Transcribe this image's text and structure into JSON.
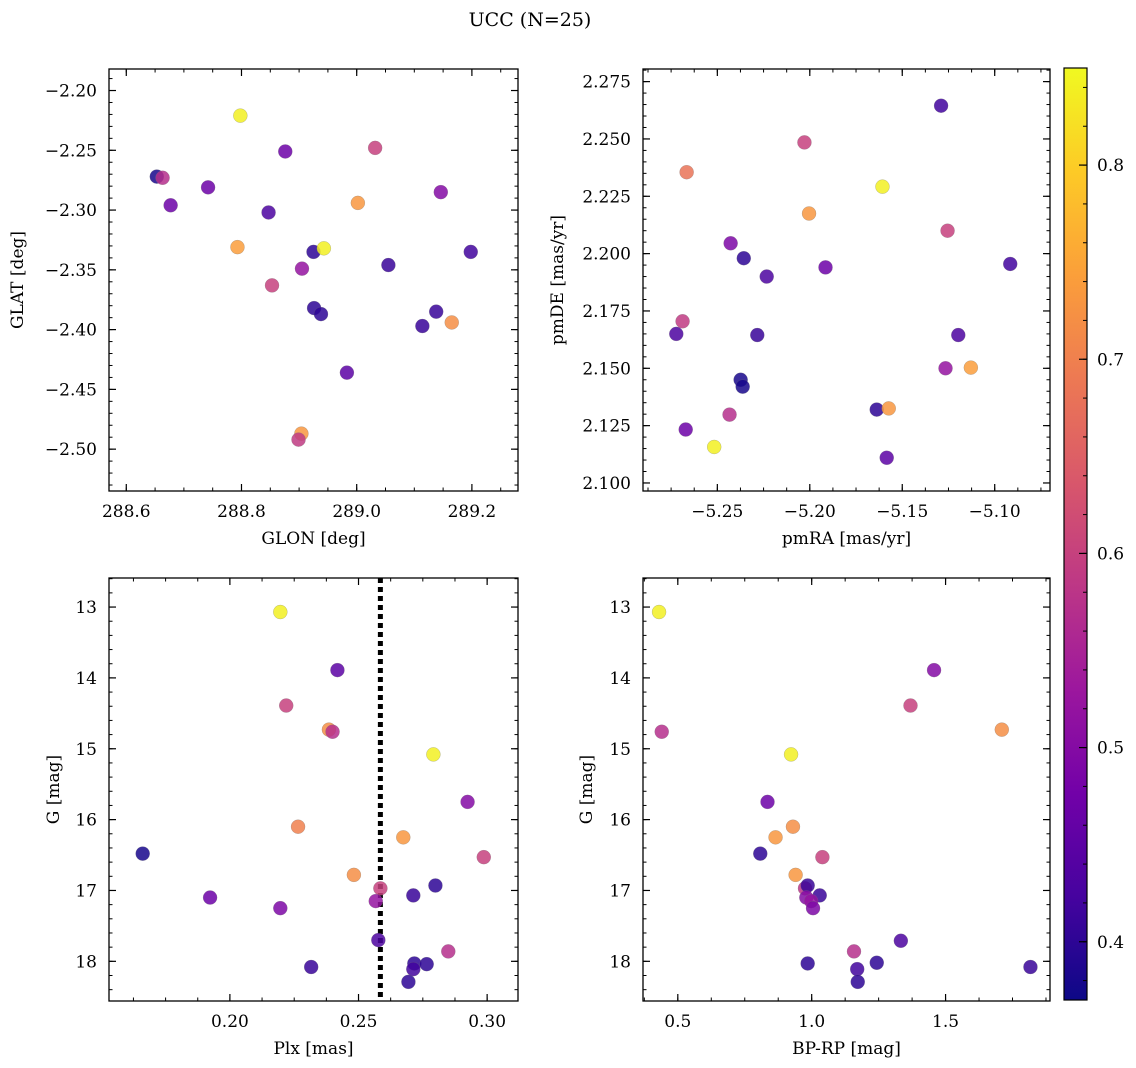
{
  "figure": {
    "title": "UCC (N=25)"
  },
  "chart_data": [
    {
      "type": "scatter",
      "xlabel": "GLON [deg]",
      "ylabel": "GLAT [deg]",
      "xlim": [
        288.57,
        289.28
      ],
      "ylim": [
        -2.535,
        -2.182
      ],
      "xticks": [
        288.6,
        288.8,
        289.0,
        289.2
      ],
      "xtick_labels": [
        "288.6",
        "288.8",
        "289.0",
        "289.2"
      ],
      "yticks": [
        -2.5,
        -2.45,
        -2.4,
        -2.35,
        -2.3,
        -2.25,
        -2.2
      ],
      "ytick_labels": [
        "−2.50",
        "−2.45",
        "−2.40",
        "−2.35",
        "−2.30",
        "−2.25",
        "−2.20"
      ],
      "y_inverted": false,
      "points": [
        {
          "x": 288.798,
          "y": -2.221,
          "c": 0.84
        },
        {
          "x": 288.653,
          "y": -2.272,
          "c": 0.38
        },
        {
          "x": 288.663,
          "y": -2.273,
          "c": 0.57
        },
        {
          "x": 288.677,
          "y": -2.296,
          "c": 0.47
        },
        {
          "x": 288.742,
          "y": -2.281,
          "c": 0.47
        },
        {
          "x": 288.876,
          "y": -2.251,
          "c": 0.47
        },
        {
          "x": 289.032,
          "y": -2.248,
          "c": 0.6
        },
        {
          "x": 288.847,
          "y": -2.302,
          "c": 0.43
        },
        {
          "x": 289.002,
          "y": -2.294,
          "c": 0.73
        },
        {
          "x": 289.146,
          "y": -2.285,
          "c": 0.5
        },
        {
          "x": 288.793,
          "y": -2.331,
          "c": 0.74
        },
        {
          "x": 288.925,
          "y": -2.335,
          "c": 0.4
        },
        {
          "x": 288.943,
          "y": -2.332,
          "c": 0.84
        },
        {
          "x": 289.055,
          "y": -2.346,
          "c": 0.41
        },
        {
          "x": 289.198,
          "y": -2.335,
          "c": 0.42
        },
        {
          "x": 288.905,
          "y": -2.349,
          "c": 0.52
        },
        {
          "x": 288.853,
          "y": -2.363,
          "c": 0.6
        },
        {
          "x": 288.926,
          "y": -2.382,
          "c": 0.4
        },
        {
          "x": 288.938,
          "y": -2.387,
          "c": 0.4
        },
        {
          "x": 289.138,
          "y": -2.385,
          "c": 0.41
        },
        {
          "x": 289.114,
          "y": -2.397,
          "c": 0.41
        },
        {
          "x": 289.165,
          "y": -2.394,
          "c": 0.72
        },
        {
          "x": 288.983,
          "y": -2.436,
          "c": 0.45
        },
        {
          "x": 288.904,
          "y": -2.487,
          "c": 0.73
        },
        {
          "x": 288.899,
          "y": -2.492,
          "c": 0.59
        }
      ]
    },
    {
      "type": "scatter",
      "xlabel": "pmRA [mas/yr]",
      "ylabel": "pmDE [mas/yr]",
      "xlim": [
        -5.2902,
        -5.0701
      ],
      "ylim": [
        2.0965,
        2.2805
      ],
      "xticks": [
        -5.25,
        -5.2,
        -5.15,
        -5.1
      ],
      "xtick_labels": [
        "−5.25",
        "−5.20",
        "−5.15",
        "−5.10"
      ],
      "yticks": [
        2.1,
        2.125,
        2.15,
        2.175,
        2.2,
        2.225,
        2.25,
        2.275
      ],
      "ytick_labels": [
        "2.100",
        "2.125",
        "2.150",
        "2.175",
        "2.200",
        "2.225",
        "2.250",
        "2.275"
      ],
      "y_inverted": false,
      "points": [
        {
          "x": -5.129,
          "y": 2.2645,
          "c": 0.42
        },
        {
          "x": -5.2029,
          "y": 2.2485,
          "c": 0.6
        },
        {
          "x": -5.2666,
          "y": 2.2355,
          "c": 0.68
        },
        {
          "x": -5.1607,
          "y": 2.2292,
          "c": 0.84
        },
        {
          "x": -5.2004,
          "y": 2.2175,
          "c": 0.73
        },
        {
          "x": -5.1255,
          "y": 2.21,
          "c": 0.6
        },
        {
          "x": -5.2428,
          "y": 2.2045,
          "c": 0.49
        },
        {
          "x": -5.2357,
          "y": 2.198,
          "c": 0.4
        },
        {
          "x": -5.0916,
          "y": 2.1955,
          "c": 0.42
        },
        {
          "x": -5.1915,
          "y": 2.194,
          "c": 0.47
        },
        {
          "x": -5.2233,
          "y": 2.19,
          "c": 0.43
        },
        {
          "x": -5.2688,
          "y": 2.1705,
          "c": 0.59
        },
        {
          "x": -5.2722,
          "y": 2.165,
          "c": 0.43
        },
        {
          "x": -5.2284,
          "y": 2.1645,
          "c": 0.41
        },
        {
          "x": -5.1197,
          "y": 2.1645,
          "c": 0.43
        },
        {
          "x": -5.1266,
          "y": 2.15,
          "c": 0.52
        },
        {
          "x": -5.1129,
          "y": 2.1503,
          "c": 0.74
        },
        {
          "x": -5.2374,
          "y": 2.145,
          "c": 0.38
        },
        {
          "x": -5.2363,
          "y": 2.142,
          "c": 0.38
        },
        {
          "x": -5.1638,
          "y": 2.132,
          "c": 0.4
        },
        {
          "x": -5.1573,
          "y": 2.1325,
          "c": 0.73
        },
        {
          "x": -5.2434,
          "y": 2.1298,
          "c": 0.57
        },
        {
          "x": -5.2671,
          "y": 2.1233,
          "c": 0.47
        },
        {
          "x": -5.2517,
          "y": 2.1157,
          "c": 0.84
        },
        {
          "x": -5.1584,
          "y": 2.111,
          "c": 0.45
        }
      ]
    },
    {
      "type": "scatter",
      "xlabel": "Plx [mas]",
      "ylabel": "G [mag]",
      "xlim": [
        0.153,
        0.312
      ],
      "ylim": [
        18.56,
        12.59
      ],
      "xticks": [
        0.2,
        0.25,
        0.3
      ],
      "xtick_labels": [
        "0.20",
        "0.25",
        "0.30"
      ],
      "yticks": [
        13,
        14,
        15,
        16,
        17,
        18
      ],
      "ytick_labels": [
        "13",
        "14",
        "15",
        "16",
        "17",
        "18"
      ],
      "y_inverted": true,
      "vline": {
        "x": 0.2585,
        "style": "dotted"
      },
      "points": [
        {
          "x": 0.2196,
          "y": 13.07,
          "c": 0.84
        },
        {
          "x": 0.2418,
          "y": 13.89,
          "c": 0.45
        },
        {
          "x": 0.2219,
          "y": 14.39,
          "c": 0.6
        },
        {
          "x": 0.2385,
          "y": 14.73,
          "c": 0.72
        },
        {
          "x": 0.2399,
          "y": 14.76,
          "c": 0.57
        },
        {
          "x": 0.2791,
          "y": 15.08,
          "c": 0.84
        },
        {
          "x": 0.2924,
          "y": 15.75,
          "c": 0.5
        },
        {
          "x": 0.2265,
          "y": 16.1,
          "c": 0.7
        },
        {
          "x": 0.2674,
          "y": 16.25,
          "c": 0.73
        },
        {
          "x": 0.1661,
          "y": 16.48,
          "c": 0.38
        },
        {
          "x": 0.2987,
          "y": 16.53,
          "c": 0.6
        },
        {
          "x": 0.2482,
          "y": 16.78,
          "c": 0.72
        },
        {
          "x": 0.2585,
          "y": 16.97,
          "c": 0.6
        },
        {
          "x": 0.2799,
          "y": 16.93,
          "c": 0.4
        },
        {
          "x": 0.2713,
          "y": 17.07,
          "c": 0.41
        },
        {
          "x": 0.1923,
          "y": 17.1,
          "c": 0.47
        },
        {
          "x": 0.2567,
          "y": 17.15,
          "c": 0.52
        },
        {
          "x": 0.2196,
          "y": 17.25,
          "c": 0.49
        },
        {
          "x": 0.2577,
          "y": 17.7,
          "c": 0.43
        },
        {
          "x": 0.2849,
          "y": 17.86,
          "c": 0.57
        },
        {
          "x": 0.2717,
          "y": 18.03,
          "c": 0.4
        },
        {
          "x": 0.2765,
          "y": 18.04,
          "c": 0.4
        },
        {
          "x": 0.2316,
          "y": 18.08,
          "c": 0.41
        },
        {
          "x": 0.2713,
          "y": 18.11,
          "c": 0.42
        },
        {
          "x": 0.2694,
          "y": 18.29,
          "c": 0.4
        }
      ]
    },
    {
      "type": "scatter",
      "xlabel": "BP-RP [mag]",
      "ylabel": "G [mag]",
      "xlim": [
        0.37,
        1.89
      ],
      "ylim": [
        18.56,
        12.59
      ],
      "xticks": [
        0.5,
        1.0,
        1.5
      ],
      "xtick_labels": [
        "0.5",
        "1.0",
        "1.5"
      ],
      "yticks": [
        13,
        14,
        15,
        16,
        17,
        18
      ],
      "ytick_labels": [
        "13",
        "14",
        "15",
        "16",
        "17",
        "18"
      ],
      "y_inverted": true,
      "points": [
        {
          "x": 0.43,
          "y": 13.07,
          "c": 0.84
        },
        {
          "x": 1.457,
          "y": 13.89,
          "c": 0.5
        },
        {
          "x": 1.369,
          "y": 14.39,
          "c": 0.6
        },
        {
          "x": 1.71,
          "y": 14.73,
          "c": 0.72
        },
        {
          "x": 0.44,
          "y": 14.76,
          "c": 0.57
        },
        {
          "x": 0.923,
          "y": 15.08,
          "c": 0.84
        },
        {
          "x": 0.835,
          "y": 15.75,
          "c": 0.47
        },
        {
          "x": 0.93,
          "y": 16.1,
          "c": 0.72
        },
        {
          "x": 0.865,
          "y": 16.25,
          "c": 0.73
        },
        {
          "x": 0.808,
          "y": 16.48,
          "c": 0.4
        },
        {
          "x": 1.04,
          "y": 16.53,
          "c": 0.6
        },
        {
          "x": 0.94,
          "y": 16.78,
          "c": 0.73
        },
        {
          "x": 0.975,
          "y": 16.97,
          "c": 0.58
        },
        {
          "x": 0.985,
          "y": 16.93,
          "c": 0.41
        },
        {
          "x": 1.03,
          "y": 17.07,
          "c": 0.41
        },
        {
          "x": 0.98,
          "y": 17.1,
          "c": 0.5
        },
        {
          "x": 0.998,
          "y": 17.15,
          "c": 0.52
        },
        {
          "x": 1.005,
          "y": 17.25,
          "c": 0.49
        },
        {
          "x": 1.333,
          "y": 17.71,
          "c": 0.43
        },
        {
          "x": 1.158,
          "y": 17.86,
          "c": 0.57
        },
        {
          "x": 0.985,
          "y": 18.03,
          "c": 0.4
        },
        {
          "x": 1.243,
          "y": 18.02,
          "c": 0.4
        },
        {
          "x": 1.817,
          "y": 18.08,
          "c": 0.41
        },
        {
          "x": 1.17,
          "y": 18.11,
          "c": 0.42
        },
        {
          "x": 1.172,
          "y": 18.29,
          "c": 0.4
        }
      ]
    }
  ],
  "colorbar": {
    "colormap": "plasma",
    "range": [
      0.37,
      0.85
    ],
    "ticks": [
      0.4,
      0.5,
      0.6,
      0.7,
      0.8
    ],
    "tick_labels": [
      "0.4",
      "0.5",
      "0.6",
      "0.7",
      "0.8"
    ],
    "stops": [
      "#0d0887",
      "#46039f",
      "#7201a8",
      "#9c179e",
      "#bd3786",
      "#d8576b",
      "#ed7953",
      "#fb9f3a",
      "#fdca26",
      "#f0f921"
    ]
  }
}
